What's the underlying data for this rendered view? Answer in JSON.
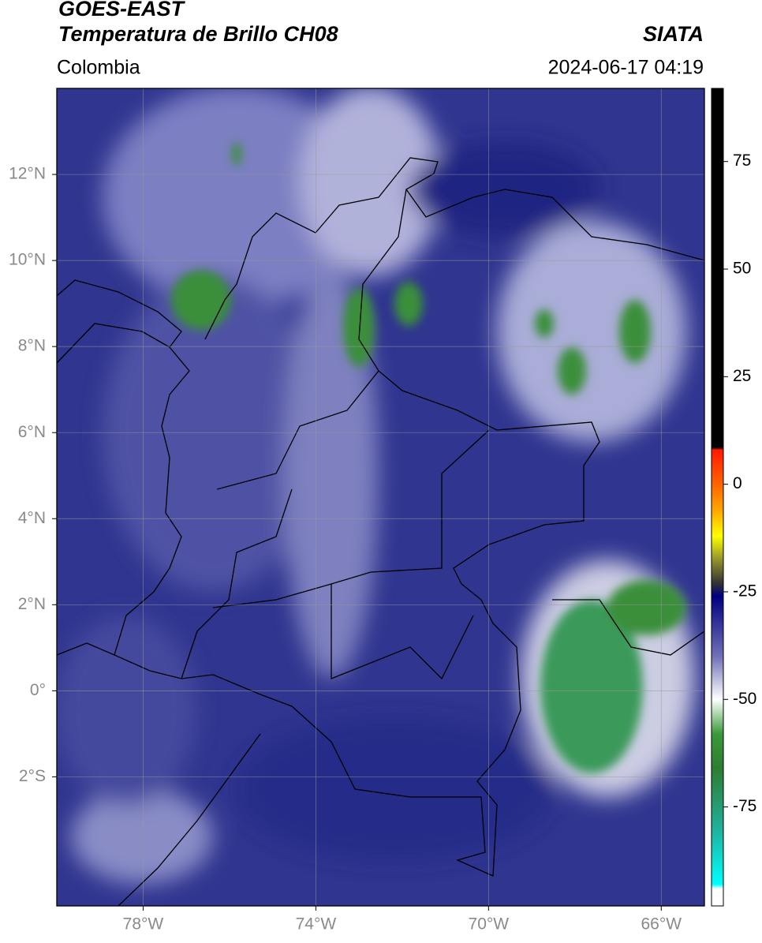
{
  "header": {
    "title": "GOES-EAST",
    "subtitle": "Temperatura de Brillo CH08",
    "source": "SIATA",
    "region": "Colombia",
    "datetime": "2024-06-17 04:19"
  },
  "map": {
    "xlim": [
      -80,
      -65
    ],
    "ylim": [
      -5,
      14
    ],
    "xticks": [
      {
        "value": -78,
        "label": "78°W"
      },
      {
        "value": -74,
        "label": "74°W"
      },
      {
        "value": -70,
        "label": "70°W"
      },
      {
        "value": -66,
        "label": "66°W"
      }
    ],
    "yticks": [
      {
        "value": 12,
        "label": "12°N"
      },
      {
        "value": 10,
        "label": "10°N"
      },
      {
        "value": 8,
        "label": "8°N"
      },
      {
        "value": 6,
        "label": "6°N"
      },
      {
        "value": 4,
        "label": "4°N"
      },
      {
        "value": 2,
        "label": "2°N"
      },
      {
        "value": 0,
        "label": "0°"
      },
      {
        "value": -2,
        "label": "2°S"
      }
    ],
    "grid": true
  },
  "colorbar": {
    "clim": [
      -98,
      92
    ],
    "ticks": [
      75,
      50,
      25,
      0,
      -25,
      -50,
      -75
    ],
    "stops": [
      {
        "value": 92,
        "color": "#000000"
      },
      {
        "value": 8.5,
        "color": "#000000"
      },
      {
        "value": 8,
        "color": "#ff1a00"
      },
      {
        "value": 1,
        "color": "#ff5a00"
      },
      {
        "value": -6,
        "color": "#ffa500"
      },
      {
        "value": -12,
        "color": "#ffff00"
      },
      {
        "value": -18,
        "color": "#8a8a30"
      },
      {
        "value": -23,
        "color": "#333333"
      },
      {
        "value": -26,
        "color": "#000080"
      },
      {
        "value": -40,
        "color": "#7070b8"
      },
      {
        "value": -50,
        "color": "#ffffff"
      },
      {
        "value": -58,
        "color": "#3a9a3a"
      },
      {
        "value": -66,
        "color": "#2e7d32"
      },
      {
        "value": -80,
        "color": "#20b09a"
      },
      {
        "value": -93,
        "color": "#00ffff"
      },
      {
        "value": -94,
        "color": "#ffffff"
      },
      {
        "value": -98,
        "color": "#ffffff"
      }
    ]
  }
}
